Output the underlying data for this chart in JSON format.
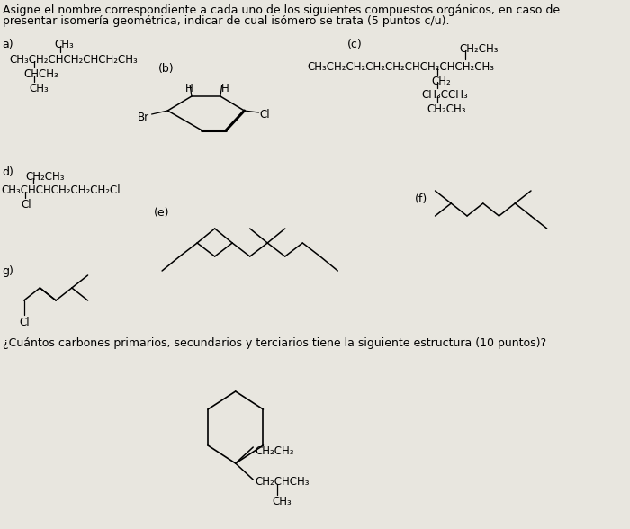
{
  "bg_color": "#e8e6df",
  "title_line1": "Asigne el nombre correspondiente a cada uno de los siguientes compuestos orgánicos, en caso de",
  "title_line2": "presentar isomería geométrica, indicar de cual isómero se trata (5 puntos c/u).",
  "question2": "¿Cuántos carbones primarios, secundarios y terciarios tiene la siguiente estructura (10 puntos)?",
  "fs_title": 9.0,
  "fs_text": 9.0,
  "fs_chem": 8.5,
  "fs_label": 9.0
}
